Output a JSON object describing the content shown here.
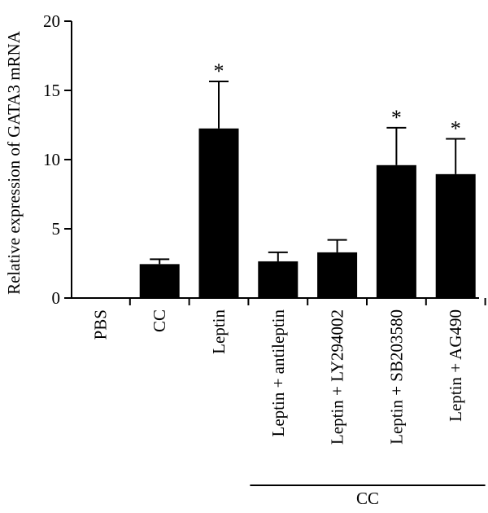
{
  "chart_data": {
    "type": "bar",
    "title": "",
    "xlabel": "",
    "ylabel": "Relative expression of GATA3 mRNA",
    "ylim": [
      0,
      20
    ],
    "yticks": [
      0,
      5,
      10,
      15,
      20
    ],
    "grid": false,
    "categories": [
      "PBS",
      "CC",
      "Leptin",
      "Leptin + antileptin",
      "Leptin + LY294002",
      "Leptin + SB203580",
      "Leptin + AG490"
    ],
    "values": [
      0,
      2.45,
      12.25,
      2.65,
      3.3,
      9.6,
      8.95
    ],
    "errors": [
      0,
      0.35,
      3.4,
      0.65,
      0.9,
      2.7,
      2.55
    ],
    "significance": [
      "",
      "",
      "*",
      "",
      "",
      "*",
      "*"
    ],
    "group_label": {
      "text": "CC",
      "spans": [
        "Leptin + antileptin",
        "Leptin + LY294002",
        "Leptin + SB203580",
        "Leptin + AG490"
      ]
    },
    "colors": {
      "bar": "#000000",
      "axis": "#000000"
    }
  }
}
